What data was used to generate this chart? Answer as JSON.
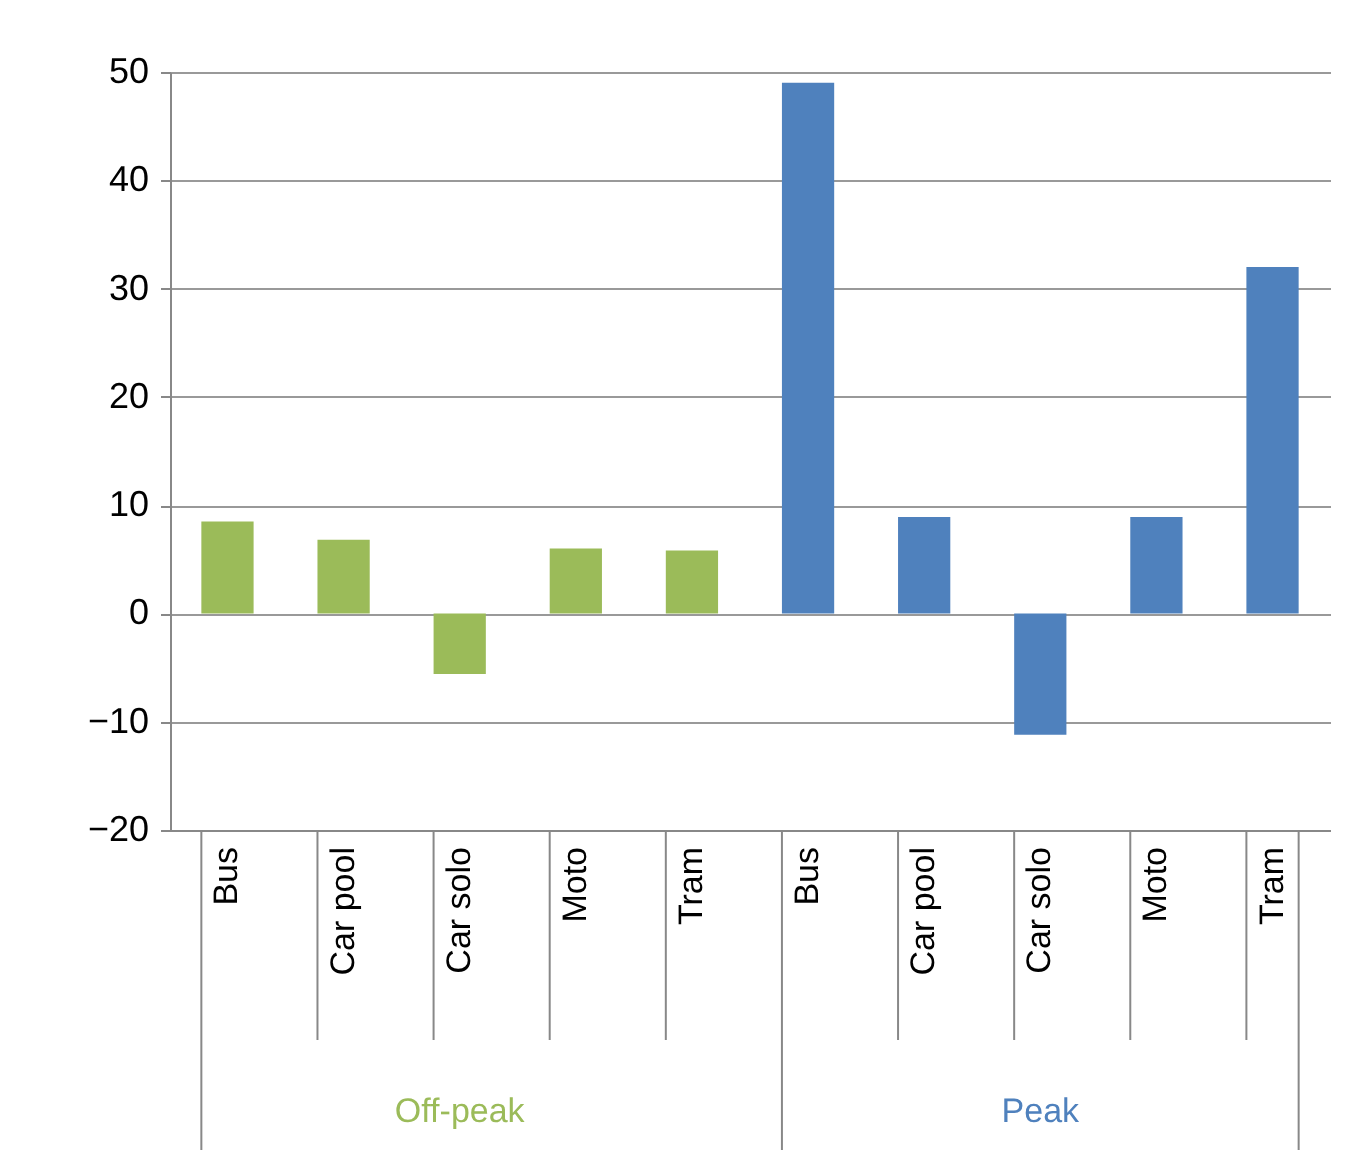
{
  "chart_data": {
    "type": "bar",
    "categories": [
      "Bus",
      "Car pool",
      "Car solo",
      "Moto",
      "Tram",
      "Bus",
      "Car pool",
      "Car solo",
      "Moto",
      "Tram"
    ],
    "series": [
      {
        "name": "Off-peak",
        "color": "#9bbb59",
        "values": [
          8.5,
          6.8,
          -5.6,
          6.0,
          5.8,
          null,
          null,
          null,
          null,
          null
        ]
      },
      {
        "name": "Peak",
        "color": "#4f81bd",
        "values": [
          null,
          null,
          null,
          null,
          null,
          49,
          8.9,
          -11.2,
          8.9,
          32
        ]
      }
    ],
    "ylim": [
      -20,
      50
    ],
    "yticks": [
      -20,
      -10,
      0,
      10,
      20,
      30,
      40,
      50
    ],
    "grid": "y"
  }
}
